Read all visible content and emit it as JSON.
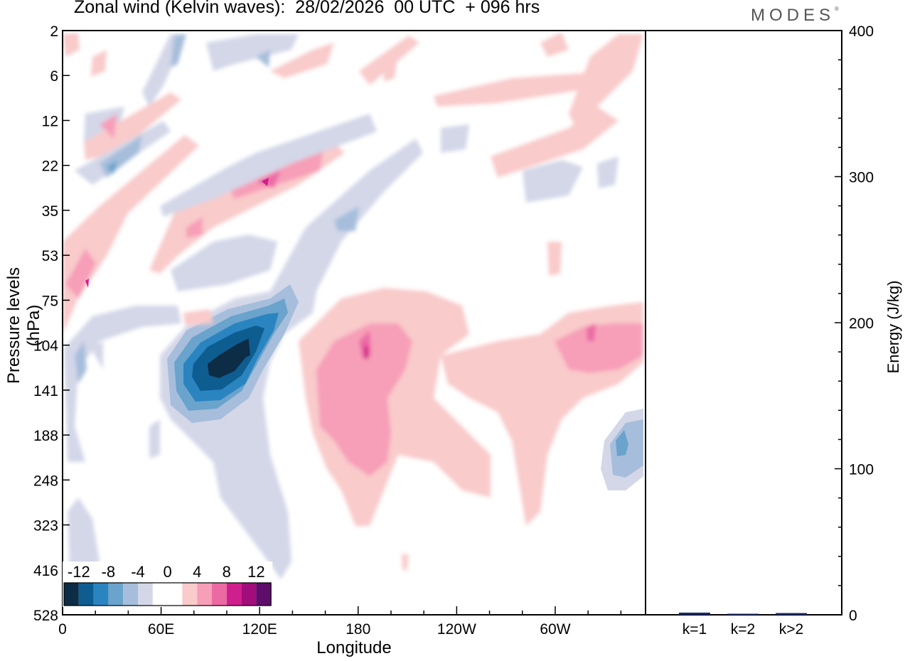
{
  "title": "Zonal wind (Kelvin waves):  28/02/2026  00 UTC  + 096 hrs",
  "brand": "MODES",
  "brand_mark": "®",
  "chart_data": [
    {
      "type": "heatmap",
      "xlabel": "Longitude",
      "ylabel": "Pressure levels (hPa)",
      "x_ticks": [
        "0",
        "60E",
        "120E",
        "180",
        "120W",
        "60W"
      ],
      "x_tick_values": [
        0,
        60,
        120,
        180,
        240,
        300
      ],
      "xlim": [
        0,
        355
      ],
      "y_ticks": [
        "2",
        "6",
        "12",
        "22",
        "35",
        "53",
        "75",
        "104",
        "141",
        "188",
        "248",
        "323",
        "416",
        "528"
      ],
      "y_scale": "categorical pressure levels, top = lowest pressure",
      "colorbar": {
        "labels": [
          "-12",
          "-8",
          "-4",
          "0",
          "4",
          "8",
          "12"
        ],
        "colors": [
          "#0d2c45",
          "#0e5d91",
          "#2a84c0",
          "#6aa3cc",
          "#a6bedb",
          "#d3d7e8",
          "#ffffff",
          "#ffffff",
          "#f9cbcb",
          "#f79fb8",
          "#ec6aa4",
          "#cf1f8c",
          "#a10e7b",
          "#5e0d6b"
        ]
      },
      "features": [
        {
          "sign": "negative",
          "peak": -16,
          "lon": [
            63,
            130
          ],
          "level": [
            75,
            188
          ]
        },
        {
          "sign": "positive",
          "peak": 8,
          "lon": [
            150,
            250
          ],
          "level": [
            75,
            323
          ]
        },
        {
          "sign": "positive",
          "peak": 6,
          "lon": [
            295,
            355
          ],
          "level": [
            75,
            188
          ]
        },
        {
          "sign": "negative",
          "peak": -8,
          "lon": [
            330,
            355
          ],
          "level": [
            141,
            248
          ]
        },
        {
          "sign": "positive",
          "peak": 10,
          "lon": [
            90,
            160
          ],
          "level": [
            22,
            53
          ]
        },
        {
          "sign": "positive",
          "peak": 8,
          "lon": [
            0,
            30
          ],
          "level": [
            53,
            104
          ]
        }
      ]
    },
    {
      "type": "bar",
      "categories": [
        "k=1",
        "k=2",
        "k>2"
      ],
      "values": [
        1.5,
        0.5,
        1.2
      ],
      "ylabel": "Energy (J/kg)",
      "ylim": [
        0,
        400
      ],
      "y_ticks": [
        "0",
        "100",
        "200",
        "300",
        "400"
      ],
      "bar_color": "#1b2a6b"
    }
  ]
}
